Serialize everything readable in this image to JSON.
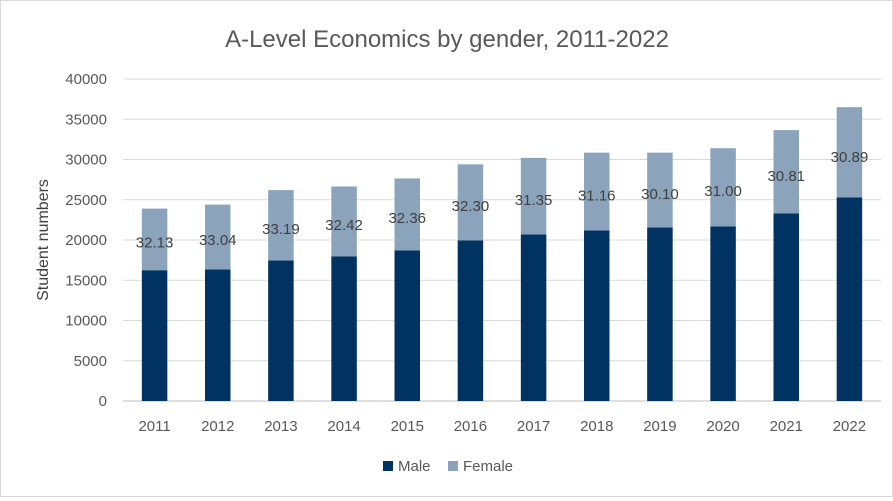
{
  "chart_data": {
    "type": "bar",
    "stacked": true,
    "title": "A-Level Economics by gender, 2011-2022",
    "xlabel": "",
    "ylabel": "Student numbers",
    "ylim": [
      0,
      40000
    ],
    "yticks": [
      0,
      5000,
      10000,
      15000,
      20000,
      25000,
      30000,
      35000,
      40000
    ],
    "grid": true,
    "legend_position": "bottom",
    "categories": [
      "2011",
      "2012",
      "2013",
      "2014",
      "2015",
      "2016",
      "2017",
      "2018",
      "2019",
      "2020",
      "2021",
      "2022"
    ],
    "series": [
      {
        "name": "Male",
        "color": "#003361",
        "values": [
          16250,
          16350,
          17450,
          17950,
          18700,
          19950,
          20700,
          21200,
          21550,
          21700,
          23300,
          25300
        ]
      },
      {
        "name": "Female",
        "color": "#8ba3bb",
        "values": [
          7650,
          8050,
          8750,
          8700,
          8950,
          9450,
          9500,
          9650,
          9300,
          9700,
          10350,
          11200
        ]
      }
    ],
    "data_labels": [
      "32.13",
      "33.04",
      "33.19",
      "32.42",
      "32.36",
      "32.30",
      "31.35",
      "31.16",
      "30.10",
      "31.00",
      "30.81",
      "30.89"
    ]
  }
}
